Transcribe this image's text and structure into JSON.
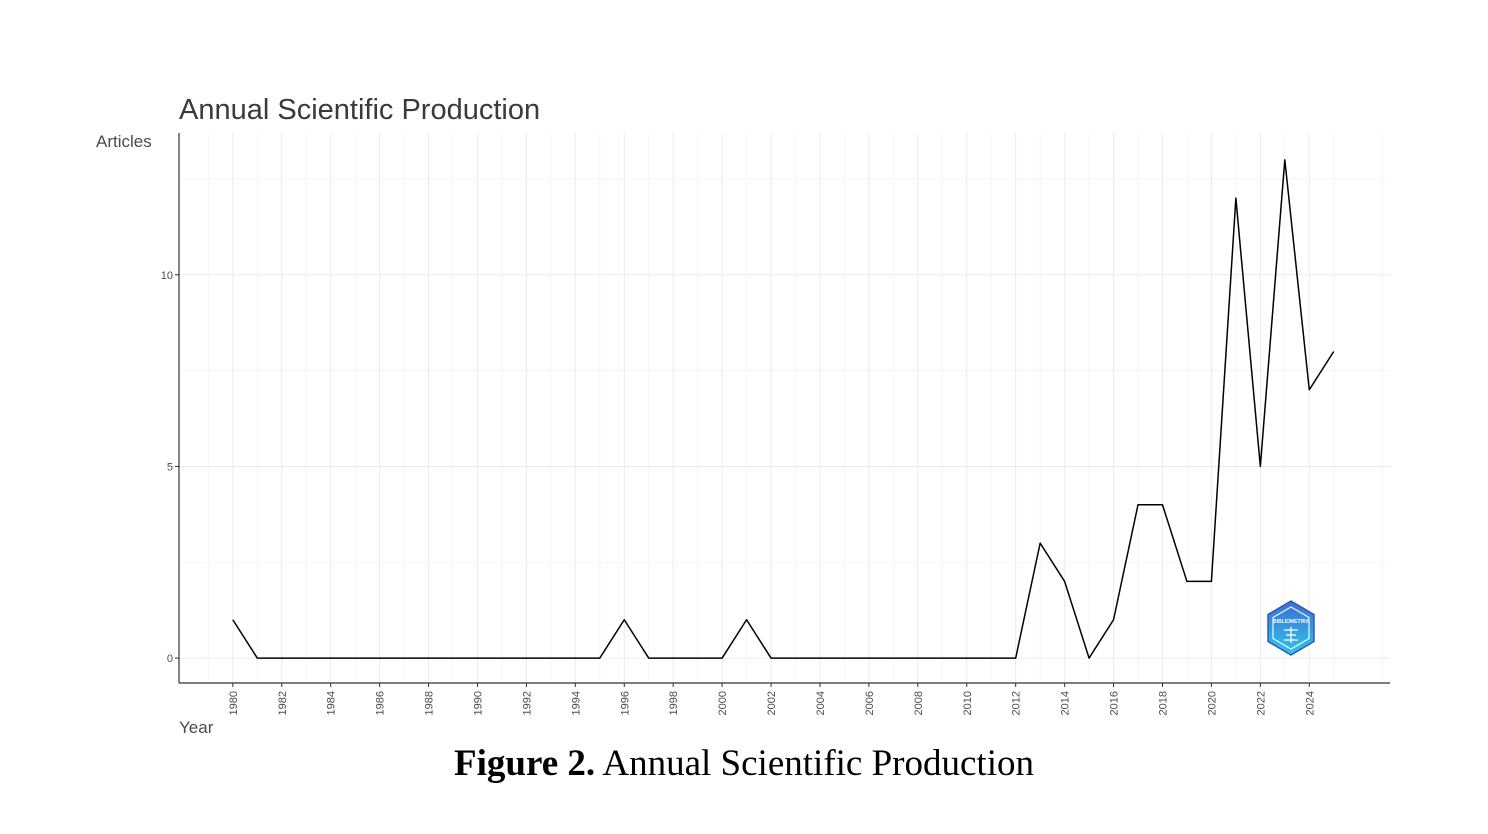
{
  "chart_data": {
    "type": "line",
    "title": "Annual Scientific Production",
    "xlabel": "Year",
    "ylabel": "Articles",
    "x": [
      1980,
      1981,
      1982,
      1983,
      1984,
      1985,
      1986,
      1987,
      1988,
      1989,
      1990,
      1991,
      1992,
      1993,
      1994,
      1995,
      1996,
      1997,
      1998,
      1999,
      2000,
      2001,
      2002,
      2003,
      2004,
      2005,
      2006,
      2007,
      2008,
      2009,
      2010,
      2011,
      2012,
      2013,
      2014,
      2015,
      2016,
      2017,
      2018,
      2019,
      2020,
      2021,
      2022,
      2023,
      2024,
      2025
    ],
    "series": [
      {
        "values": [
          1,
          0,
          0,
          0,
          0,
          0,
          0,
          0,
          0,
          0,
          0,
          0,
          0,
          0,
          0,
          0,
          1,
          0,
          0,
          0,
          0,
          1,
          0,
          0,
          0,
          0,
          0,
          0,
          0,
          0,
          0,
          0,
          0,
          3,
          2,
          0,
          1,
          4,
          4,
          2,
          2,
          12,
          5,
          13,
          7,
          8
        ]
      }
    ],
    "xticks": [
      "1980",
      "1982",
      "1984",
      "1986",
      "1988",
      "1990",
      "1992",
      "1994",
      "1996",
      "1998",
      "2000",
      "2002",
      "2004",
      "2006",
      "2008",
      "2010",
      "2012",
      "2014",
      "2016",
      "2018",
      "2020",
      "2022",
      "2024"
    ],
    "yticks": [
      "0",
      "5",
      "10"
    ],
    "xlim": [
      1977.8,
      2027.3
    ],
    "ylim": [
      -0.65,
      13.7
    ],
    "grid": true,
    "legend": "none",
    "line_color": "#000000"
  },
  "logo": {
    "text": "BIBLIOMETRIX",
    "color_top": "#3b6fd1",
    "color_bottom": "#2fc6e8"
  },
  "caption": {
    "label": "Figure 2.",
    "text": " Annual Scientific Production"
  }
}
